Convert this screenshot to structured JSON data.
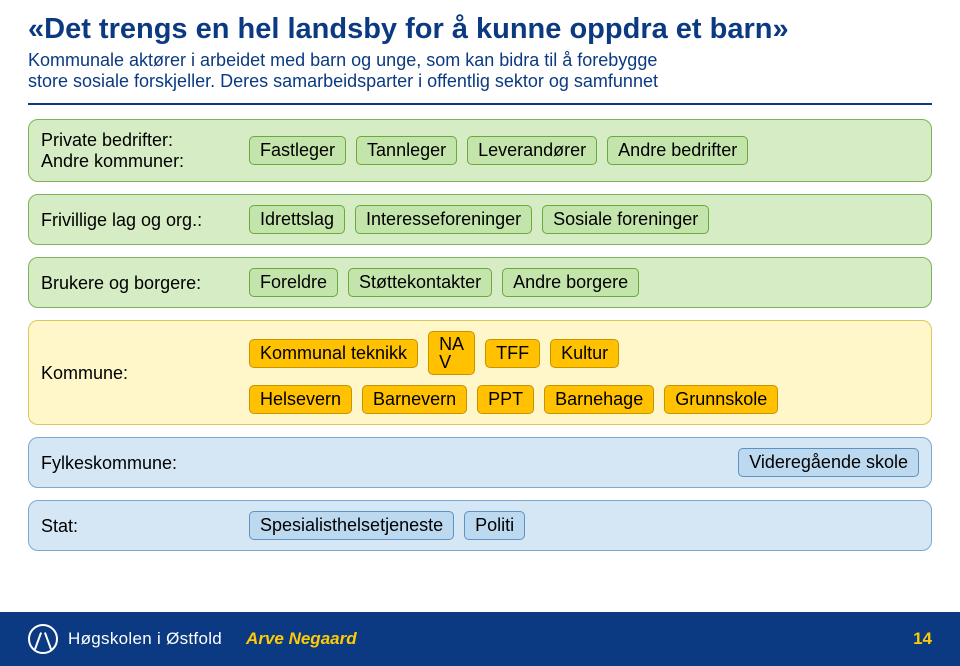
{
  "title_color": "#0b3a82",
  "subtitle_color": "#0b3a82",
  "rule_color": "#0b3a82",
  "title": "«Det trengs en hel landsby for å kunne oppdra et barn»",
  "subtitle_line1": "Kommunale aktører i arbeidet med barn og unge, som kan bidra til å forebygge",
  "subtitle_line2": "store sosiale forskjeller. Deres samarbeidsparter i offentlig sektor og samfunnet",
  "blocks": {
    "private": {
      "label_line1": "Private bedrifter:",
      "label_line2": "Andre kommuner:",
      "chips": [
        "Fastleger",
        "Tannleger",
        "Leverandører",
        "Andre bedrifter"
      ]
    },
    "frivillige": {
      "label": "Frivillige lag og org.:",
      "chips": [
        "Idrettslag",
        "Interesseforeninger",
        "Sosiale foreninger"
      ]
    },
    "brukere": {
      "label": "Brukere og borgere:",
      "chips": [
        "Foreldre",
        "Støttekontakter",
        "Andre borgere"
      ]
    },
    "kommune": {
      "label": "Kommune:",
      "row1": [
        "Kommunal teknikk",
        "NA\nV",
        "TFF",
        "Kultur"
      ],
      "row2": [
        "Helsevern",
        "Barnevern",
        "PPT",
        "Barnehage",
        "Grunnskole"
      ]
    },
    "fylke": {
      "label": "Fylkeskommune:",
      "chips": [
        "Videregående skole"
      ]
    },
    "stat": {
      "label": "Stat:",
      "chips": [
        "Spesialisthelsetjeneste",
        "Politi"
      ]
    }
  },
  "footer": {
    "org": "Høgskolen i Østfold",
    "author": "Arve Negaard",
    "pagenum": "14",
    "bg": "#0b3a82",
    "accent": "#ffcb05"
  }
}
